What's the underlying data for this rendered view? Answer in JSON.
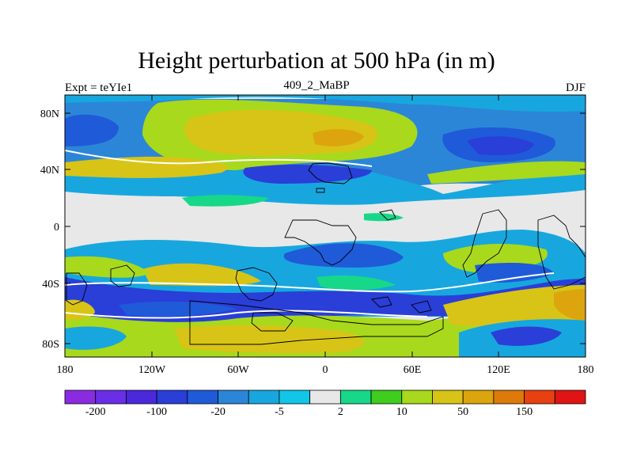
{
  "title": "Height perturbation at 500 hPa (in m)",
  "subtitle_left": "Expt = teYIe1",
  "subtitle_center": "409_2_MaBP",
  "subtitle_right": "DJF",
  "y_ticks": [
    "80N",
    "40N",
    "0",
    "40S",
    "80S"
  ],
  "x_ticks": [
    "180",
    "120W",
    "60W",
    "0",
    "60E",
    "120E",
    "180"
  ],
  "colorbar": {
    "colors": [
      "#8a2be2",
      "#6a2ee6",
      "#4a28dc",
      "#2a3ed8",
      "#1f5ad8",
      "#2b86d8",
      "#17a7de",
      "#12c6e8",
      "#e8e8e8",
      "#16d888",
      "#3fcd1e",
      "#a8d91c",
      "#d8c416",
      "#dca50e",
      "#de7a0a",
      "#e84010",
      "#e01414"
    ],
    "labels": [
      "-200",
      "-100",
      "-20",
      "-5",
      "2",
      "10",
      "50",
      "150"
    ]
  },
  "map": {
    "lon_range": [
      -180,
      180
    ],
    "lat_range": [
      -90,
      90
    ],
    "missing_color": "#e8e8e8"
  }
}
